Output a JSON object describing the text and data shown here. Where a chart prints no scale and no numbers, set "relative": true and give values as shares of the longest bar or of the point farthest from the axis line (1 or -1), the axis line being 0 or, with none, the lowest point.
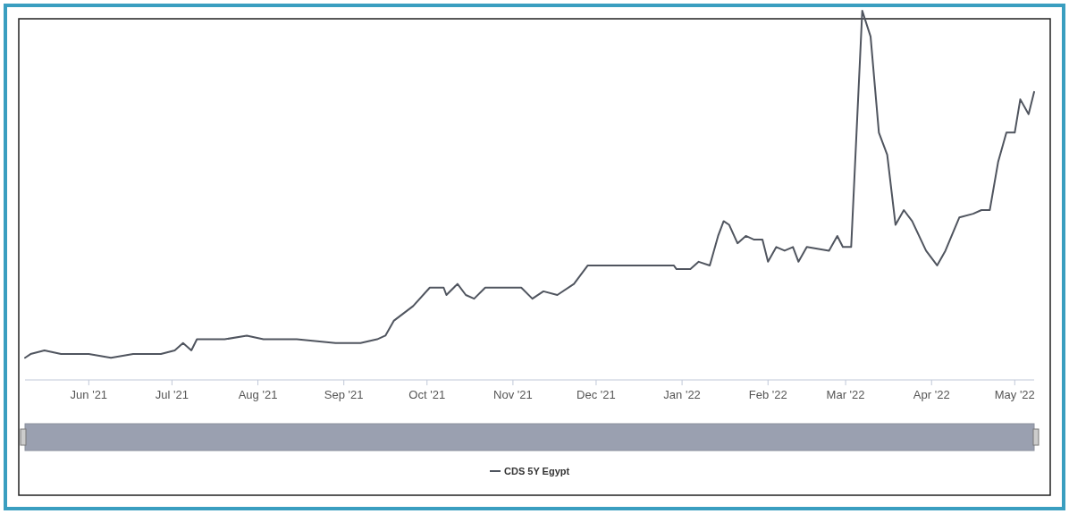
{
  "chart_data": {
    "type": "line",
    "relative": true,
    "legend": "bottom",
    "grid": false,
    "x": [
      "2021-05-09",
      "2021-05-11",
      "2021-05-16",
      "2021-05-22",
      "2021-06-01",
      "2021-06-09",
      "2021-06-17",
      "2021-06-27",
      "2021-07-02",
      "2021-07-05",
      "2021-07-08",
      "2021-07-10",
      "2021-07-20",
      "2021-07-28",
      "2021-08-03",
      "2021-08-15",
      "2021-08-29",
      "2021-09-07",
      "2021-09-13",
      "2021-09-16",
      "2021-09-19",
      "2021-09-26",
      "2021-10-02",
      "2021-10-07",
      "2021-10-08",
      "2021-10-12",
      "2021-10-15",
      "2021-10-18",
      "2021-10-22",
      "2021-11-04",
      "2021-11-08",
      "2021-11-12",
      "2021-11-17",
      "2021-11-23",
      "2021-11-28",
      "2021-12-08",
      "2021-12-11",
      "2021-12-29",
      "2021-12-30",
      "2022-01-04",
      "2022-01-07",
      "2022-01-11",
      "2022-01-14",
      "2022-01-16",
      "2022-01-18",
      "2022-01-21",
      "2022-01-24",
      "2022-01-27",
      "2022-01-30",
      "2022-02-01",
      "2022-02-04",
      "2022-02-07",
      "2022-02-10",
      "2022-02-12",
      "2022-02-15",
      "2022-02-23",
      "2022-02-26",
      "2022-02-28",
      "2022-03-03",
      "2022-03-07",
      "2022-03-10",
      "2022-03-13",
      "2022-03-16",
      "2022-03-19",
      "2022-03-22",
      "2022-03-25",
      "2022-03-30",
      "2022-04-03",
      "2022-04-06",
      "2022-04-11",
      "2022-04-16",
      "2022-04-19",
      "2022-04-22",
      "2022-04-25",
      "2022-04-28",
      "2022-05-01",
      "2022-05-03",
      "2022-05-06",
      "2022-05-08"
    ],
    "series": [
      {
        "name": "CDS 5Y Egypt",
        "color": "#50555f",
        "values": [
          0.06,
          0.07,
          0.08,
          0.07,
          0.07,
          0.06,
          0.07,
          0.07,
          0.08,
          0.1,
          0.08,
          0.11,
          0.11,
          0.12,
          0.11,
          0.11,
          0.1,
          0.1,
          0.11,
          0.12,
          0.16,
          0.2,
          0.25,
          0.25,
          0.23,
          0.26,
          0.23,
          0.22,
          0.25,
          0.25,
          0.22,
          0.24,
          0.23,
          0.26,
          0.31,
          0.31,
          0.31,
          0.31,
          0.3,
          0.3,
          0.32,
          0.31,
          0.39,
          0.43,
          0.42,
          0.37,
          0.39,
          0.38,
          0.38,
          0.32,
          0.36,
          0.35,
          0.36,
          0.32,
          0.36,
          0.35,
          0.39,
          0.36,
          0.36,
          1,
          0.93,
          0.67,
          0.61,
          0.42,
          0.46,
          0.43,
          0.35,
          0.31,
          0.35,
          0.44,
          0.45,
          0.46,
          0.46,
          0.59,
          0.67,
          0.67,
          0.76,
          0.72,
          0.78
        ]
      }
    ],
    "xlim": [
      "2021-05-09",
      "2022-05-08"
    ],
    "xticks": [
      {
        "value": "2021-06-01",
        "label": "Jun '21"
      },
      {
        "value": "2021-07-01",
        "label": "Jul '21"
      },
      {
        "value": "2021-08-01",
        "label": "Aug '21"
      },
      {
        "value": "2021-09-01",
        "label": "Sep '21"
      },
      {
        "value": "2021-10-01",
        "label": "Oct '21"
      },
      {
        "value": "2021-11-01",
        "label": "Nov '21"
      },
      {
        "value": "2021-12-01",
        "label": "Dec '21"
      },
      {
        "value": "2022-01-01",
        "label": "Jan '22"
      },
      {
        "value": "2022-02-01",
        "label": "Feb '22"
      },
      {
        "value": "2022-03-01",
        "label": "Mar '22"
      },
      {
        "value": "2022-04-01",
        "label": "Apr '22"
      },
      {
        "value": "2022-05-01",
        "label": "May '22"
      }
    ]
  }
}
